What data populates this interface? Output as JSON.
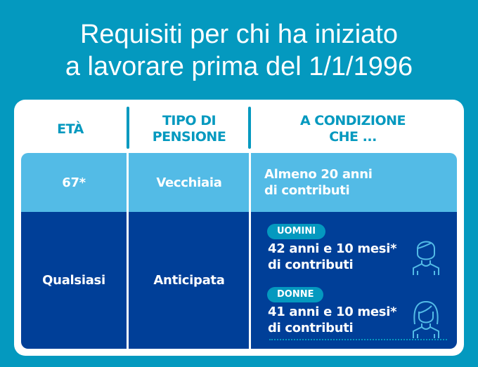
{
  "title": {
    "line1": "Requisiti per chi ha iniziato",
    "line2": "a lavorare prima del 1/1/1996"
  },
  "headers": {
    "eta": "ETÀ",
    "tipo_l1": "TIPO DI",
    "tipo_l2": "PENSIONE",
    "cond_l1": "A CONDIZIONE",
    "cond_l2": "CHE ..."
  },
  "rows": [
    {
      "eta": "67*",
      "tipo": "Vecchiaia",
      "cond_l1": "Almeno 20 anni",
      "cond_l2": "di contributi"
    },
    {
      "eta": "Qualsiasi",
      "tipo": "Anticipata",
      "uomini": {
        "label": "UOMINI",
        "l1": "42 anni e 10 mesi*",
        "l2": "di contributi",
        "icon": "man-icon"
      },
      "donne": {
        "label": "DONNE",
        "l1": "41 anni e 10 mesi*",
        "l2": "di contributi",
        "icon": "woman-icon"
      }
    }
  ],
  "colors": {
    "background": "#0499bf",
    "light_row": "#53bbe6",
    "dark_row": "#003f98",
    "accent": "#0499bf"
  }
}
